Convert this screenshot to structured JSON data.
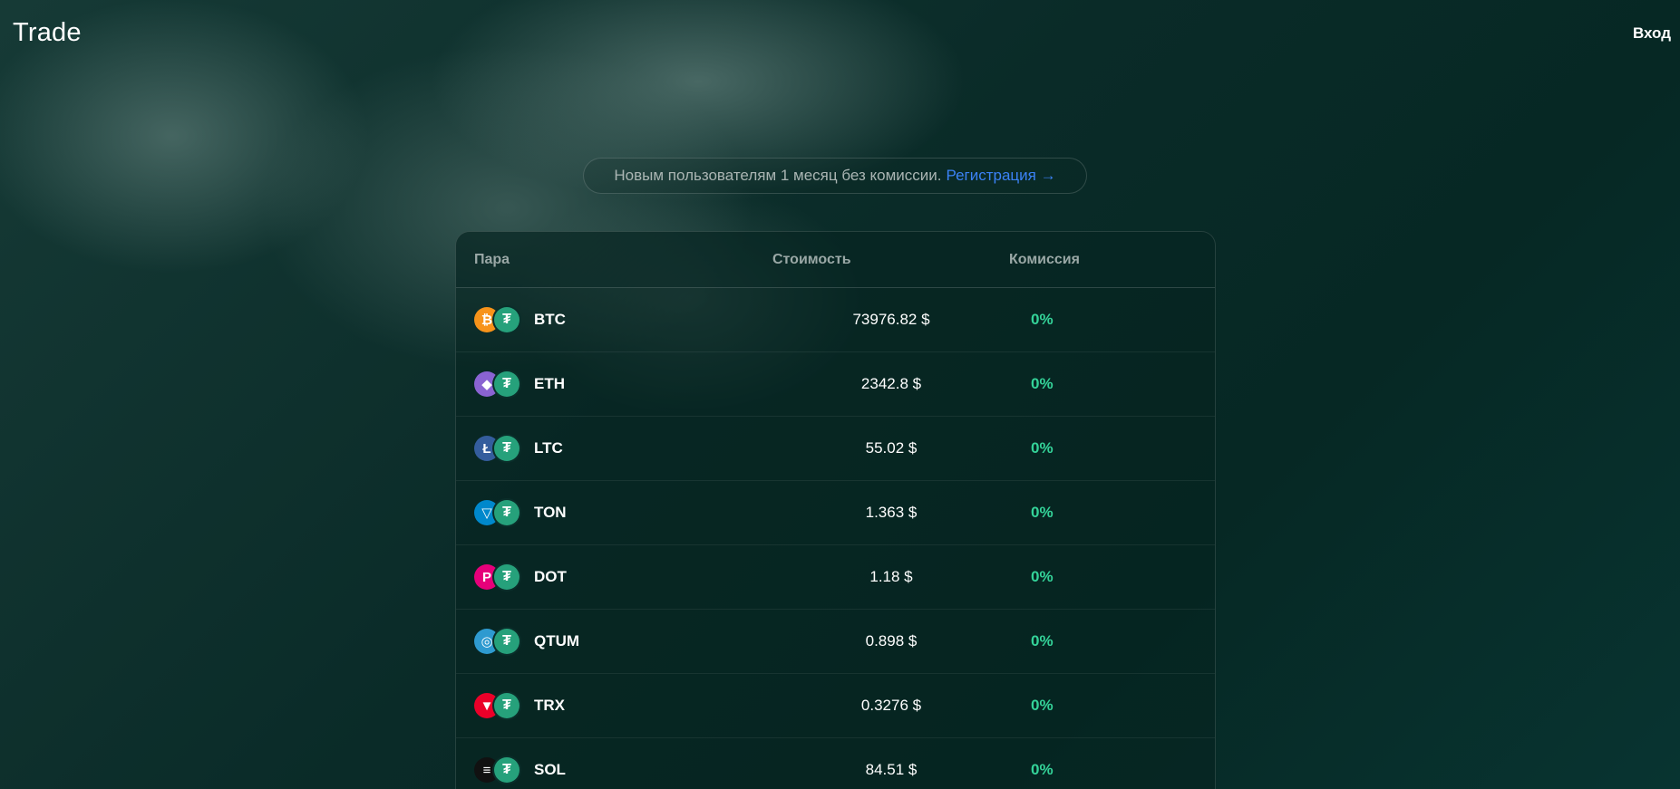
{
  "header": {
    "logo": "Trade",
    "login_label": "Вход"
  },
  "promo": {
    "text": "Новым пользователям 1 месяц без комиссии.",
    "link": "Регистрация →"
  },
  "table": {
    "columns": {
      "pair": "Пара",
      "price": "Стоимость",
      "fee": "Комиссия"
    },
    "rows": [
      {
        "symbol": "BTC",
        "price": "73976.82 $",
        "fee": "0%",
        "icon": "bitcoin-icon",
        "color": "#f7931a",
        "glyph": "₿"
      },
      {
        "symbol": "ETH",
        "price": "2342.8 $",
        "fee": "0%",
        "icon": "ethereum-icon",
        "color": "#8a63d2",
        "glyph": "◆"
      },
      {
        "symbol": "LTC",
        "price": "55.02 $",
        "fee": "0%",
        "icon": "litecoin-icon",
        "color": "#345d9d",
        "glyph": "Ł"
      },
      {
        "symbol": "TON",
        "price": "1.363 $",
        "fee": "0%",
        "icon": "toncoin-icon",
        "color": "#0088cc",
        "glyph": "▽"
      },
      {
        "symbol": "DOT",
        "price": "1.18 $",
        "fee": "0%",
        "icon": "polkadot-icon",
        "color": "#e6007a",
        "glyph": "P"
      },
      {
        "symbol": "QTUM",
        "price": "0.898 $",
        "fee": "0%",
        "icon": "qtum-icon",
        "color": "#2e9ad0",
        "glyph": "◎"
      },
      {
        "symbol": "TRX",
        "price": "0.3276 $",
        "fee": "0%",
        "icon": "tron-icon",
        "color": "#eb0029",
        "glyph": "▼"
      },
      {
        "symbol": "SOL",
        "price": "84.51 $",
        "fee": "0%",
        "icon": "solana-icon",
        "color": "#111111",
        "glyph": "≡"
      }
    ],
    "quote_icon": "tether-icon",
    "quote_glyph": "₮"
  }
}
